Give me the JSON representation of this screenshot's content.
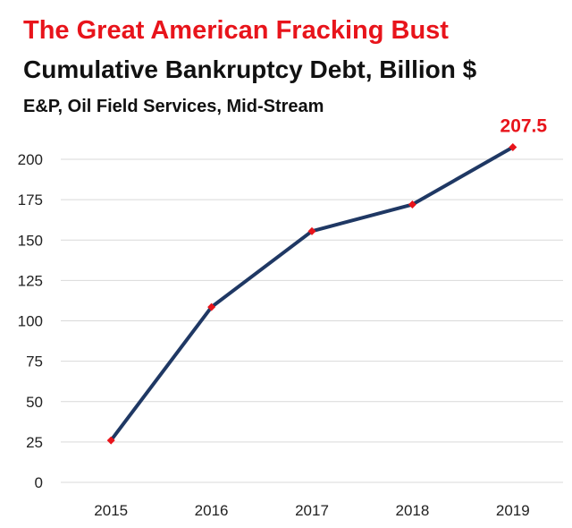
{
  "chart_data": {
    "type": "line",
    "title": "The Great American Fracking Bust",
    "subtitle": "Cumulative Bankruptcy Debt, Billion $",
    "note": "E&P, Oil Field Services, Mid-Stream",
    "categories": [
      "2015",
      "2016",
      "2017",
      "2018",
      "2019"
    ],
    "series": [
      {
        "values": [
          26,
          108.5,
          155.5,
          172,
          207.5
        ]
      }
    ],
    "data_labels": [
      {
        "index": 4,
        "text": "207.5"
      }
    ],
    "ylim": [
      0,
      200
    ],
    "yticks": [
      0,
      25,
      50,
      75,
      100,
      125,
      150,
      175,
      200
    ],
    "grid": true,
    "line_color": "#1f3864",
    "marker_color": "#e8141b",
    "title_color": "#e8141b",
    "gridline_color": "#d9d9d9"
  }
}
